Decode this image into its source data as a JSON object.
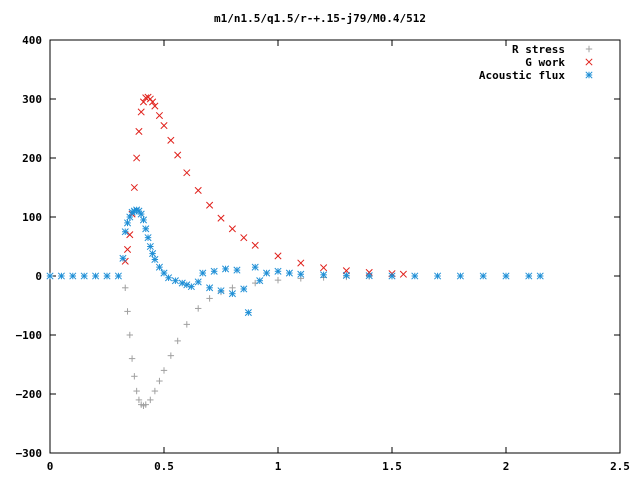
{
  "chart_data": {
    "type": "scatter",
    "title": "m1/n1.5/q1.5/r-+.15-j79/M0.4/512",
    "xlabel": "",
    "ylabel": "",
    "xlim": [
      0,
      2.5
    ],
    "ylim": [
      -300,
      400
    ],
    "x_ticks": [
      "0",
      "0.5",
      "1",
      "1.5",
      "2",
      "2.5"
    ],
    "y_ticks": [
      "400",
      "300",
      "200",
      "100",
      "0",
      "−100",
      "−200",
      "−300"
    ],
    "grid": false,
    "legend_position": "top-right",
    "series": [
      {
        "name": "R stress",
        "marker": "plus",
        "color": "#a0a0a0",
        "x": [
          0.33,
          0.34,
          0.35,
          0.36,
          0.37,
          0.38,
          0.39,
          0.4,
          0.41,
          0.42,
          0.44,
          0.46,
          0.48,
          0.5,
          0.53,
          0.56,
          0.6,
          0.65,
          0.7,
          0.75,
          0.8,
          0.9,
          1.0,
          1.1,
          1.2,
          1.3,
          1.4,
          1.5
        ],
        "y": [
          -20,
          -60,
          -100,
          -140,
          -170,
          -195,
          -210,
          -218,
          -220,
          -218,
          -210,
          -195,
          -178,
          -160,
          -135,
          -110,
          -82,
          -55,
          -38,
          -27,
          -20,
          -12,
          -7,
          -4,
          -2.5,
          -1.5,
          -0.8,
          -0.3
        ]
      },
      {
        "name": "G work",
        "marker": "cross",
        "color": "#e0201b",
        "x": [
          0.33,
          0.34,
          0.35,
          0.36,
          0.37,
          0.38,
          0.39,
          0.4,
          0.41,
          0.42,
          0.43,
          0.44,
          0.45,
          0.46,
          0.48,
          0.5,
          0.53,
          0.56,
          0.6,
          0.65,
          0.7,
          0.75,
          0.8,
          0.85,
          0.9,
          1.0,
          1.1,
          1.2,
          1.3,
          1.4,
          1.5,
          1.55
        ],
        "y": [
          25,
          45,
          70,
          105,
          150,
          200,
          245,
          278,
          295,
          302,
          303,
          300,
          295,
          288,
          272,
          255,
          230,
          205,
          175,
          145,
          120,
          98,
          80,
          65,
          52,
          34,
          22,
          14,
          9,
          6,
          4,
          3
        ]
      },
      {
        "name": "Acoustic flux",
        "marker": "star",
        "color": "#1f8fd6",
        "x": [
          0.0,
          0.05,
          0.1,
          0.15,
          0.2,
          0.25,
          0.3,
          0.32,
          0.33,
          0.34,
          0.35,
          0.36,
          0.37,
          0.38,
          0.39,
          0.4,
          0.41,
          0.42,
          0.43,
          0.44,
          0.45,
          0.46,
          0.48,
          0.5,
          0.52,
          0.55,
          0.58,
          0.6,
          0.62,
          0.65,
          0.67,
          0.7,
          0.72,
          0.75,
          0.77,
          0.8,
          0.82,
          0.85,
          0.87,
          0.9,
          0.92,
          0.95,
          1.0,
          1.05,
          1.1,
          1.2,
          1.3,
          1.4,
          1.5,
          1.6,
          1.7,
          1.8,
          1.9,
          2.0,
          2.1,
          2.15
        ],
        "y": [
          0,
          0,
          0,
          0,
          0,
          0,
          0,
          30,
          75,
          90,
          100,
          108,
          110,
          112,
          110,
          105,
          95,
          80,
          65,
          50,
          38,
          28,
          15,
          5,
          -3,
          -8,
          -12,
          -15,
          -18,
          -10,
          5,
          -20,
          8,
          -25,
          12,
          -30,
          10,
          -22,
          -62,
          15,
          -8,
          5,
          8,
          5,
          3,
          2,
          1,
          0.5,
          0,
          0,
          0,
          0,
          0,
          0,
          0,
          0
        ]
      }
    ]
  }
}
